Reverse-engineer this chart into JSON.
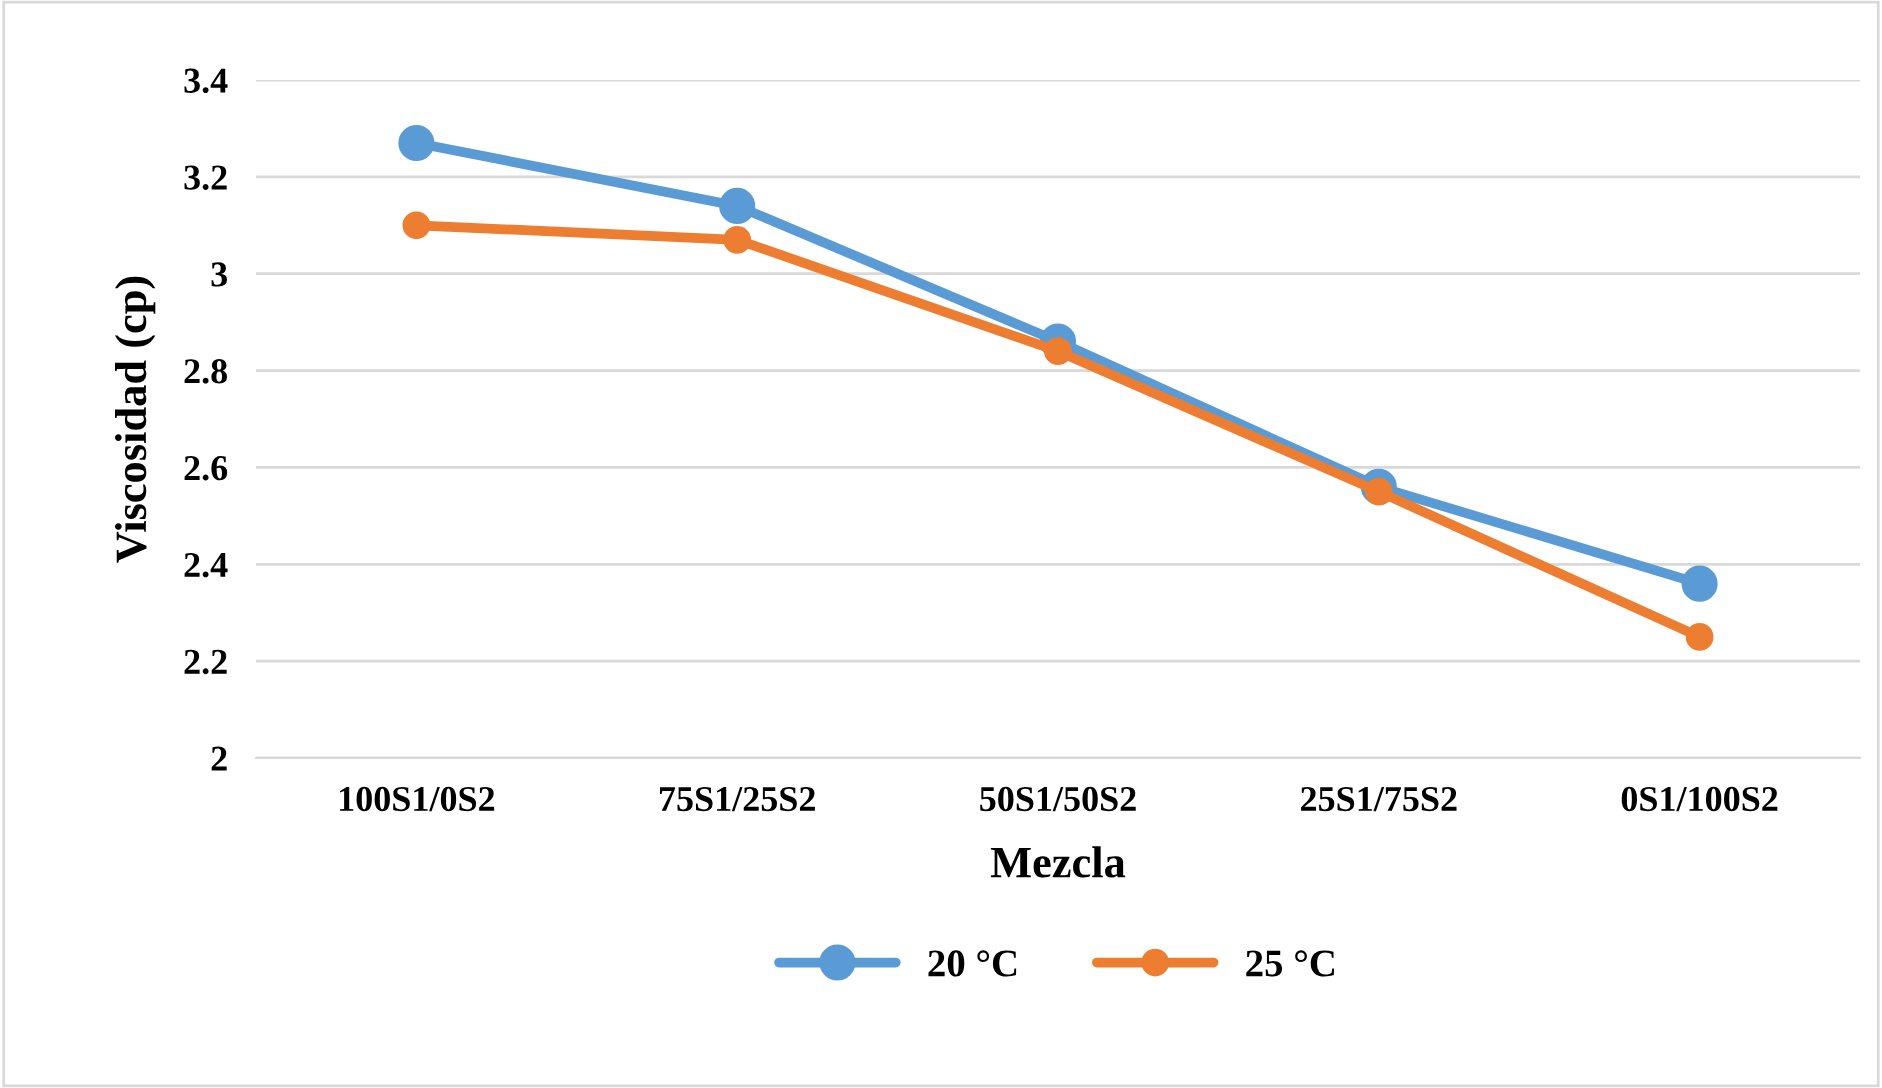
{
  "chart_data": {
    "type": "line",
    "xlabel": "Mezcla",
    "ylabel": "Viscosidad (cp)",
    "categories": [
      "100S1/0S2",
      "75S1/25S2",
      "50S1/50S2",
      "25S1/75S2",
      "0S1/100S2"
    ],
    "series": [
      {
        "name": "20 °C",
        "color": "#5b9bd5",
        "values": [
          3.27,
          3.14,
          2.86,
          2.56,
          2.36
        ]
      },
      {
        "name": "25 °C",
        "color": "#ed7d31",
        "values": [
          3.1,
          3.07,
          2.84,
          2.55,
          2.25
        ]
      }
    ],
    "ylim": [
      2,
      3.4
    ],
    "yticks": [
      2,
      2.2,
      2.4,
      2.6,
      2.8,
      3,
      3.2,
      3.4
    ],
    "grid": "y",
    "legend": "bottom",
    "marker": "circle",
    "line_style": "solid"
  }
}
